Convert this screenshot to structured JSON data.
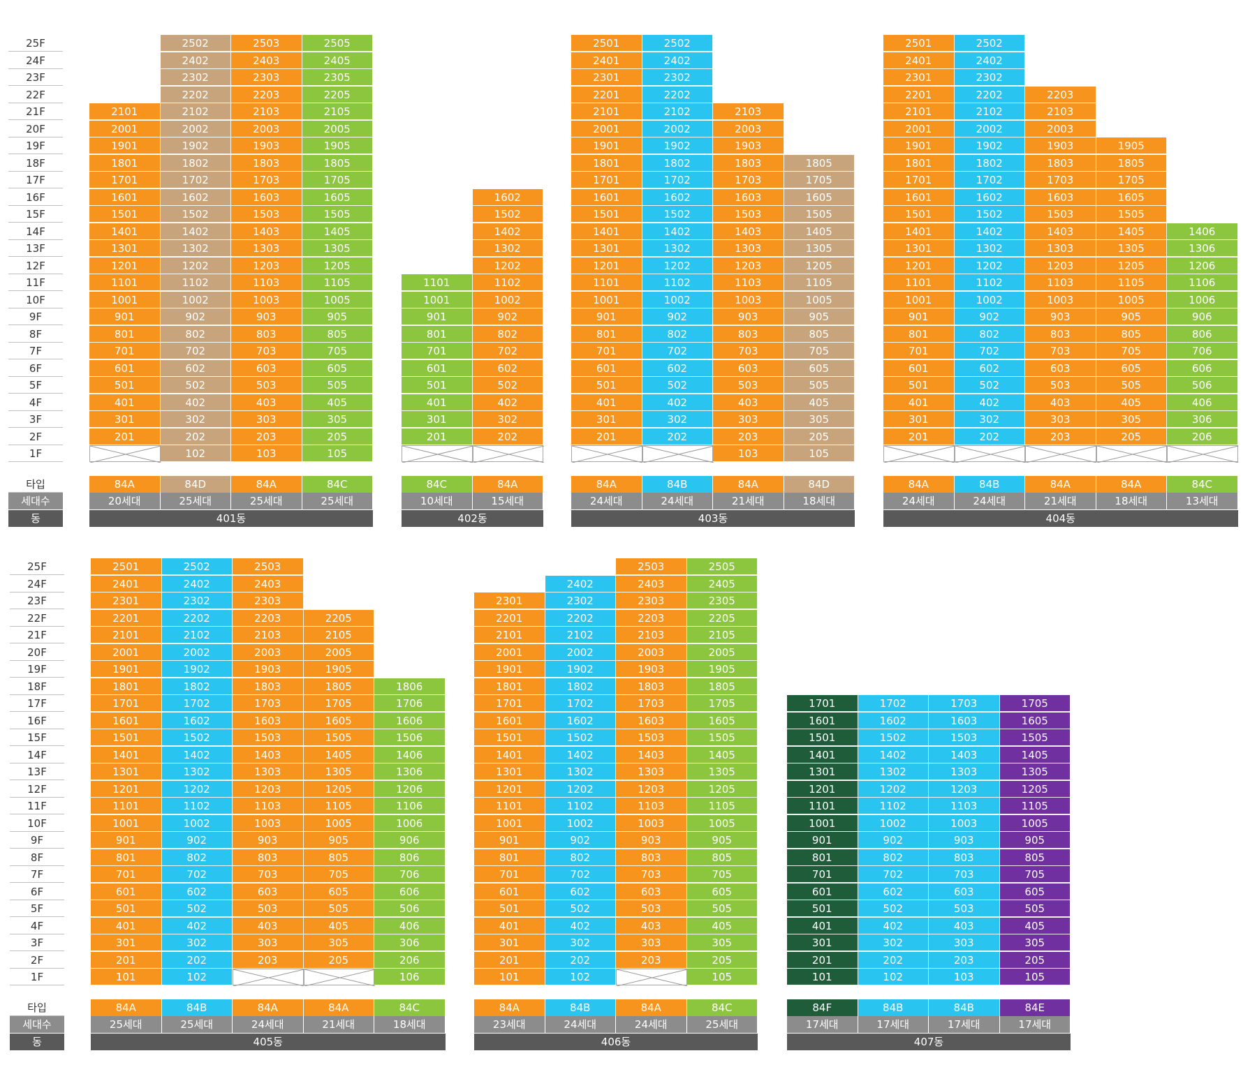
{
  "labels": {
    "type": "타입",
    "households": "세대수",
    "building": "동"
  },
  "colors": {
    "84A": "#f7941d",
    "84B": "#29c5f0",
    "84C": "#8cc63f",
    "84D": "#c8a47c",
    "84E": "#7030a0",
    "84F": "#1e5c3a"
  },
  "chart_data": {
    "type": "table",
    "buildings": [
      {
        "name": "401동",
        "lines": [
          {
            "type": "84A",
            "households": "20세대",
            "line": "01",
            "top": 21,
            "empty": [
              1
            ]
          },
          {
            "type": "84D",
            "households": "25세대",
            "line": "02",
            "top": 25,
            "empty": []
          },
          {
            "type": "84A",
            "households": "25세대",
            "line": "03",
            "top": 25,
            "empty": []
          },
          {
            "type": "84C",
            "households": "25세대",
            "line": "05",
            "top": 25,
            "empty": []
          }
        ]
      },
      {
        "name": "402동",
        "lines": [
          {
            "type": "84C",
            "households": "10세대",
            "line": "01",
            "top": 11,
            "empty": [
              1
            ]
          },
          {
            "type": "84A",
            "households": "15세대",
            "line": "02",
            "top": 16,
            "empty": [
              1
            ]
          }
        ]
      },
      {
        "name": "403동",
        "lines": [
          {
            "type": "84A",
            "households": "24세대",
            "line": "01",
            "top": 25,
            "empty": [
              1
            ]
          },
          {
            "type": "84B",
            "households": "24세대",
            "line": "02",
            "top": 25,
            "empty": [
              1
            ]
          },
          {
            "type": "84A",
            "households": "21세대",
            "line": "03",
            "top": 21,
            "empty": []
          },
          {
            "type": "84D",
            "households": "18세대",
            "line": "05",
            "top": 18,
            "empty": []
          }
        ]
      },
      {
        "name": "404동",
        "lines": [
          {
            "type": "84A",
            "households": "24세대",
            "line": "01",
            "top": 25,
            "empty": [
              1
            ]
          },
          {
            "type": "84B",
            "households": "24세대",
            "line": "02",
            "top": 25,
            "empty": [
              1
            ]
          },
          {
            "type": "84A",
            "households": "21세대",
            "line": "03",
            "top": 22,
            "empty": [
              1
            ]
          },
          {
            "type": "84A",
            "households": "18세대",
            "line": "05",
            "top": 19,
            "empty": [
              1
            ]
          },
          {
            "type": "84C",
            "households": "13세대",
            "line": "06",
            "top": 14,
            "empty": [
              1
            ]
          }
        ]
      },
      {
        "name": "405동",
        "lines": [
          {
            "type": "84A",
            "households": "25세대",
            "line": "01",
            "top": 25,
            "empty": []
          },
          {
            "type": "84B",
            "households": "25세대",
            "line": "02",
            "top": 25,
            "empty": []
          },
          {
            "type": "84A",
            "households": "24세대",
            "line": "03",
            "top": 25,
            "empty": [
              1
            ]
          },
          {
            "type": "84A",
            "households": "21세대",
            "line": "05",
            "top": 22,
            "empty": [
              1
            ]
          },
          {
            "type": "84C",
            "households": "18세대",
            "line": "06",
            "top": 18,
            "empty": []
          }
        ]
      },
      {
        "name": "406동",
        "lines": [
          {
            "type": "84A",
            "households": "23세대",
            "line": "01",
            "top": 23,
            "empty": []
          },
          {
            "type": "84B",
            "households": "24세대",
            "line": "02",
            "top": 24,
            "empty": []
          },
          {
            "type": "84A",
            "households": "24세대",
            "line": "03",
            "top": 25,
            "empty": [
              1
            ]
          },
          {
            "type": "84C",
            "households": "25세대",
            "line": "05",
            "top": 25,
            "empty": []
          }
        ]
      },
      {
        "name": "407동",
        "lines": [
          {
            "type": "84F",
            "households": "17세대",
            "line": "01",
            "top": 17,
            "empty": []
          },
          {
            "type": "84B",
            "households": "17세대",
            "line": "02",
            "top": 17,
            "empty": []
          },
          {
            "type": "84B",
            "households": "17세대",
            "line": "03",
            "top": 17,
            "empty": []
          },
          {
            "type": "84E",
            "households": "17세대",
            "line": "05",
            "top": 17,
            "empty": []
          }
        ]
      }
    ]
  }
}
